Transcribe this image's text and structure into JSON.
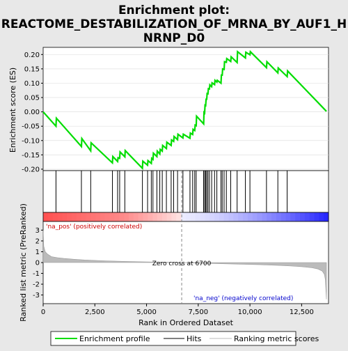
{
  "chart_data": {
    "type": "line",
    "title_line1": "Enrichment plot:",
    "title_line2": "REACTOME_DESTABILIZATION_OF_MRNA_BY_AUF1_H",
    "title_line3": "NRNP_D0",
    "es_panel": {
      "ylabel": "Enrichment score (ES)",
      "ylim": [
        -0.205,
        0.225
      ],
      "yticks": [
        -0.2,
        -0.15,
        -0.1,
        -0.05,
        0.0,
        0.05,
        0.1,
        0.15,
        0.2
      ],
      "ytick_labels": [
        "-0.20",
        "-0.15",
        "-0.10",
        "-0.05",
        "0.00",
        "0.05",
        "0.10",
        "0.15",
        "0.20"
      ],
      "line_color": "#00dd00",
      "series": [
        {
          "name": "Enrichment profile",
          "x": [
            0,
            620,
            640,
            1850,
            1870,
            2300,
            2320,
            3350,
            3370,
            3600,
            3620,
            3700,
            3720,
            3950,
            3970,
            4800,
            4820,
            5050,
            5070,
            5230,
            5250,
            5310,
            5330,
            5500,
            5520,
            5640,
            5660,
            5760,
            5780,
            5960,
            5980,
            6190,
            6210,
            6310,
            6330,
            6500,
            6520,
            6760,
            6780,
            7100,
            7120,
            7230,
            7250,
            7330,
            7350,
            7400,
            7420,
            7760,
            7780,
            7810,
            7830,
            7860,
            7880,
            7910,
            7930,
            7970,
            7990,
            8040,
            8060,
            8150,
            8170,
            8290,
            8310,
            8400,
            8420,
            8600,
            8620,
            8660,
            8680,
            8750,
            8770,
            8860,
            8880,
            9070,
            9090,
            9380,
            9400,
            9780,
            9800,
            10000,
            10020,
            10800,
            10820,
            11350,
            11370,
            11800,
            11820,
            13700
          ],
          "y": [
            0.0,
            -0.05,
            -0.022,
            -0.121,
            -0.093,
            -0.136,
            -0.108,
            -0.178,
            -0.156,
            -0.173,
            -0.16,
            -0.162,
            -0.14,
            -0.157,
            -0.135,
            -0.197,
            -0.172,
            -0.186,
            -0.17,
            -0.18,
            -0.162,
            -0.166,
            -0.144,
            -0.156,
            -0.137,
            -0.147,
            -0.131,
            -0.137,
            -0.117,
            -0.128,
            -0.106,
            -0.117,
            -0.098,
            -0.103,
            -0.086,
            -0.097,
            -0.078,
            -0.091,
            -0.078,
            -0.092,
            -0.074,
            -0.079,
            -0.061,
            -0.065,
            -0.046,
            -0.048,
            -0.015,
            -0.042,
            -0.002,
            -0.004,
            0.023,
            0.022,
            0.044,
            0.044,
            0.064,
            0.063,
            0.081,
            0.08,
            0.094,
            0.088,
            0.101,
            0.095,
            0.11,
            0.104,
            0.11,
            0.1,
            0.128,
            0.128,
            0.15,
            0.148,
            0.175,
            0.173,
            0.186,
            0.176,
            0.192,
            0.172,
            0.21,
            0.188,
            0.208,
            0.199,
            0.21,
            0.154,
            0.175,
            0.136,
            0.153,
            0.123,
            0.143,
            0.002
          ]
        }
      ]
    },
    "hits_panel": {
      "hits": [
        620,
        1850,
        2300,
        3350,
        3600,
        3700,
        3950,
        4800,
        5050,
        5230,
        5310,
        5500,
        5640,
        5760,
        5960,
        6190,
        6310,
        6500,
        6760,
        7100,
        7230,
        7330,
        7400,
        7760,
        7810,
        7860,
        7910,
        7970,
        8040,
        8150,
        8290,
        8400,
        8600,
        8660,
        8750,
        8860,
        9070,
        9380,
        9780,
        10000,
        10800,
        11350,
        11800
      ]
    },
    "rank_panel": {
      "ylabel": "Ranked list metric (PreRanked)",
      "xlabel": "Rank in Ordered Dataset",
      "xlim": [
        0,
        13800
      ],
      "ylim": [
        -3.8,
        3.8
      ],
      "xticks": [
        0,
        2500,
        5000,
        7500,
        10000,
        12500
      ],
      "xtick_labels": [
        "0",
        "2,500",
        "5,000",
        "7,500",
        "10,000",
        "12,500"
      ],
      "yticks": [
        -3,
        -2,
        -1,
        0,
        1,
        2,
        3
      ],
      "ytick_labels": [
        "-3",
        "-2",
        "-1",
        "0",
        "1",
        "2",
        "3"
      ],
      "metric_x": [
        0,
        30,
        100,
        200,
        400,
        700,
        1000,
        1500,
        2000,
        3000,
        4000,
        5000,
        6000,
        6700,
        7500,
        8500,
        9500,
        10500,
        11500,
        12000,
        12500,
        13000,
        13300,
        13500,
        13600,
        13650,
        13700
      ],
      "metric_y": [
        3.0,
        1.5,
        1.0,
        0.8,
        0.55,
        0.45,
        0.38,
        0.3,
        0.24,
        0.16,
        0.1,
        0.06,
        0.03,
        0.0,
        -0.05,
        -0.1,
        -0.15,
        -0.2,
        -0.27,
        -0.32,
        -0.38,
        -0.48,
        -0.6,
        -0.8,
        -1.1,
        -1.6,
        -3.4
      ],
      "zero_cross_x": 6700,
      "zero_cross_label": "Zero cross at 6700",
      "pos_label": "'na_pos' (positively correlated)",
      "neg_label": "'na_neg' (negatively correlated)",
      "pos_color": "#cc0000",
      "neg_color": "#0000cc"
    },
    "legend": [
      {
        "label": "Enrichment profile",
        "color": "#00dd00"
      },
      {
        "label": "Hits",
        "color": "#000000"
      },
      {
        "label": "Ranking metric scores",
        "color": "#bbbbbb"
      }
    ]
  }
}
